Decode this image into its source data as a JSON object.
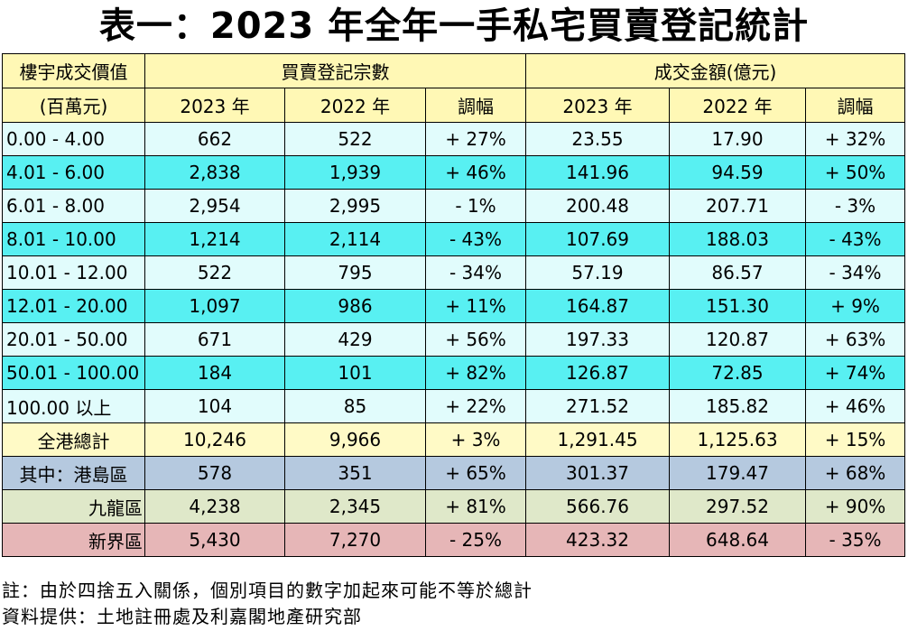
{
  "title": "表一：2023 年全年一手私宅買賣登記統計",
  "header": {
    "price_label_line1": "樓宇成交價值",
    "price_label_line2": "(百萬元)",
    "group1": "買賣登記宗數",
    "group2": "成交金額(億元)",
    "col_2023": "2023 年",
    "col_2022": "2022 年",
    "col_change": "調幅"
  },
  "rows": [
    {
      "label": "0.00 - 4.00",
      "c2023": "662",
      "c2022": "522",
      "cchg": "+ 27%",
      "v2023": "23.55",
      "v2022": "17.90",
      "vchg": "+ 32%"
    },
    {
      "label": "4.01 - 6.00",
      "c2023": "2,838",
      "c2022": "1,939",
      "cchg": "+ 46%",
      "v2023": "141.96",
      "v2022": "94.59",
      "vchg": "+ 50%"
    },
    {
      "label": "6.01 - 8.00",
      "c2023": "2,954",
      "c2022": "2,995",
      "cchg": "- 1%",
      "v2023": "200.48",
      "v2022": "207.71",
      "vchg": "- 3%"
    },
    {
      "label": "8.01 - 10.00",
      "c2023": "1,214",
      "c2022": "2,114",
      "cchg": "- 43%",
      "v2023": "107.69",
      "v2022": "188.03",
      "vchg": "- 43%"
    },
    {
      "label": "10.01 - 12.00",
      "c2023": "522",
      "c2022": "795",
      "cchg": "- 34%",
      "v2023": "57.19",
      "v2022": "86.57",
      "vchg": "- 34%"
    },
    {
      "label": "12.01 - 20.00",
      "c2023": "1,097",
      "c2022": "986",
      "cchg": "+ 11%",
      "v2023": "164.87",
      "v2022": "151.30",
      "vchg": "+ 9%"
    },
    {
      "label": "20.01 - 50.00",
      "c2023": "671",
      "c2022": "429",
      "cchg": "+ 56%",
      "v2023": "197.33",
      "v2022": "120.87",
      "vchg": "+ 63%"
    },
    {
      "label": "50.01 - 100.00",
      "c2023": "184",
      "c2022": "101",
      "cchg": "+ 82%",
      "v2023": "126.87",
      "v2022": "72.85",
      "vchg": "+ 74%"
    },
    {
      "label": "100.00 以上",
      "c2023": "104",
      "c2022": "85",
      "cchg": "+ 22%",
      "v2023": "271.52",
      "v2022": "185.82",
      "vchg": "+ 46%"
    }
  ],
  "total": {
    "label": "全港總計",
    "c2023": "10,246",
    "c2022": "9,966",
    "cchg": "+ 3%",
    "v2023": "1,291.45",
    "v2022": "1,125.63",
    "vchg": "+ 15%"
  },
  "regions": [
    {
      "label": "其中：港島區",
      "c2023": "578",
      "c2022": "351",
      "cchg": "+ 65%",
      "v2023": "301.37",
      "v2022": "179.47",
      "vchg": "+ 68%"
    },
    {
      "label": "九龍區",
      "c2023": "4,238",
      "c2022": "2,345",
      "cchg": "+ 81%",
      "v2023": "566.76",
      "v2022": "297.52",
      "vchg": "+ 90%"
    },
    {
      "label": "新界區",
      "c2023": "5,430",
      "c2022": "7,270",
      "cchg": "- 25%",
      "v2023": "423.32",
      "v2022": "648.64",
      "vchg": "- 35%"
    }
  ],
  "notes": {
    "note": "註：由於四捨五入關係，個別項目的數字加起來可能不等於總計",
    "source": "資料提供：土地註冊處及利嘉閣地產研究部"
  },
  "colors": {
    "header_bg": "#fff8b5",
    "row_light": "#e1fcfc",
    "row_teal": "#58f0f2",
    "total_bg": "#fffac6",
    "hk_bg": "#b5c9df",
    "kln_bg": "#dfe8c9",
    "nt_bg": "#e6b6b7"
  }
}
